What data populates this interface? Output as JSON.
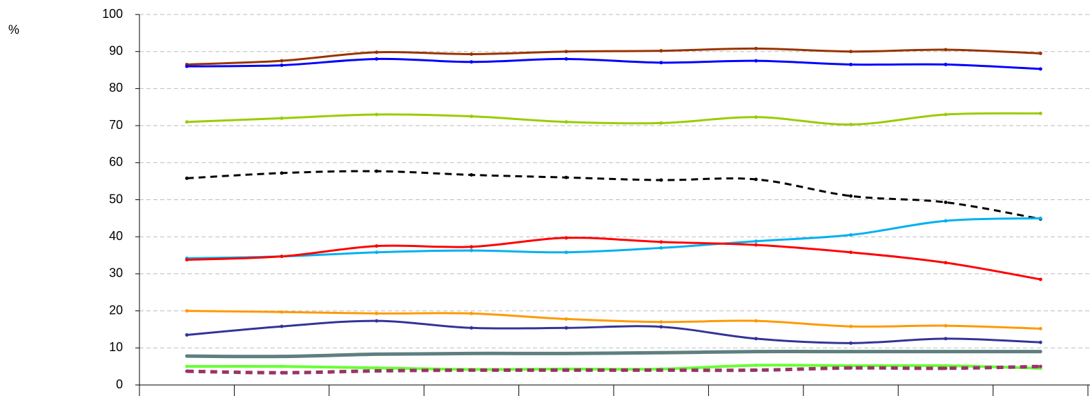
{
  "chart_data": {
    "type": "line",
    "y_label": "%",
    "categories": [
      null,
      null,
      null,
      null,
      null,
      null,
      null,
      null,
      null,
      null
    ],
    "ylim": [
      0,
      100
    ],
    "yticks": [
      0,
      10,
      20,
      30,
      40,
      50,
      60,
      70,
      80,
      90,
      100
    ],
    "grid": true,
    "smooth": true,
    "series": [
      {
        "color": "#993300",
        "width": 3,
        "dash": false,
        "values": [
          86.5,
          87.5,
          89.8,
          89.3,
          90,
          90.2,
          90.8,
          90,
          90.5,
          89.5
        ]
      },
      {
        "color": "#0000ff",
        "width": 3,
        "dash": false,
        "values": [
          86,
          86.3,
          88,
          87.2,
          88,
          87,
          87.5,
          86.5,
          86.5,
          85.3
        ]
      },
      {
        "color": "#99cc00",
        "width": 3,
        "dash": false,
        "values": [
          71,
          72,
          73,
          72.5,
          71,
          70.7,
          72.3,
          70.3,
          73,
          73.3
        ]
      },
      {
        "color": "#000000",
        "width": 3,
        "dash": true,
        "values": [
          55.8,
          57.2,
          57.7,
          56.7,
          56,
          55.3,
          55.5,
          51,
          49.3,
          44.8
        ]
      },
      {
        "color": "#00b0f0",
        "width": 3,
        "dash": false,
        "values": [
          34.2,
          34.7,
          35.8,
          36.3,
          35.8,
          37,
          38.8,
          40.5,
          44.3,
          45
        ]
      },
      {
        "color": "#ff0000",
        "width": 3,
        "dash": false,
        "values": [
          33.8,
          34.7,
          37.5,
          37.3,
          39.7,
          38.6,
          37.8,
          35.8,
          33,
          28.5
        ]
      },
      {
        "color": "#ff9900",
        "width": 3,
        "dash": false,
        "values": [
          20,
          19.7,
          19.3,
          19.3,
          17.8,
          17,
          17.3,
          15.8,
          16,
          15.2
        ]
      },
      {
        "color": "#333399",
        "width": 3,
        "dash": false,
        "values": [
          13.5,
          15.8,
          17.3,
          15.4,
          15.4,
          15.7,
          12.5,
          11.3,
          12.5,
          11.5
        ]
      },
      {
        "color": "#5f7f7f",
        "width": 5,
        "dash": false,
        "values": [
          7.8,
          7.7,
          8.3,
          8.5,
          8.5,
          8.7,
          9,
          9,
          9,
          9
        ]
      },
      {
        "color": "#66ff33",
        "width": 4,
        "dash": false,
        "values": [
          5,
          5,
          4.6,
          4.2,
          4.3,
          4.3,
          5.3,
          5.2,
          5.2,
          4.5
        ]
      },
      {
        "color": "#993366",
        "width": 5,
        "dash": true,
        "values": [
          3.7,
          3.3,
          3.8,
          4,
          4,
          4,
          4,
          4.6,
          4.5,
          5
        ]
      }
    ]
  }
}
